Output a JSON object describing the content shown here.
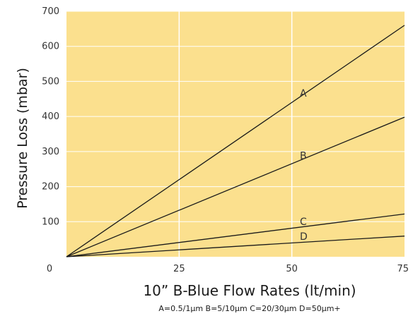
{
  "chart_data": {
    "type": "line",
    "title": "",
    "xlabel": "10” B-Blue Flow Rates (lt/min)",
    "ylabel": "Pressure Loss  (mbar)",
    "footnote": "A=0.5/1μm B=5/10μm C=20/30μm D=50μm+",
    "xlim": [
      0,
      75
    ],
    "ylim": [
      0,
      700
    ],
    "x_ticks": [
      0,
      25,
      50,
      75
    ],
    "y_ticks": [
      100,
      200,
      300,
      400,
      500,
      600,
      700
    ],
    "grid": true,
    "series": [
      {
        "name": "A",
        "x": [
          0,
          75
        ],
        "y": [
          0,
          660
        ]
      },
      {
        "name": "B",
        "x": [
          0,
          75
        ],
        "y": [
          0,
          398
        ]
      },
      {
        "name": "C",
        "x": [
          0,
          75
        ],
        "y": [
          0,
          122
        ]
      },
      {
        "name": "D",
        "x": [
          0,
          75
        ],
        "y": [
          0,
          59
        ]
      }
    ],
    "colors": {
      "plot_bg": "#fbe08e",
      "grid": "#ffffff",
      "line": "#1a1a1a"
    }
  }
}
